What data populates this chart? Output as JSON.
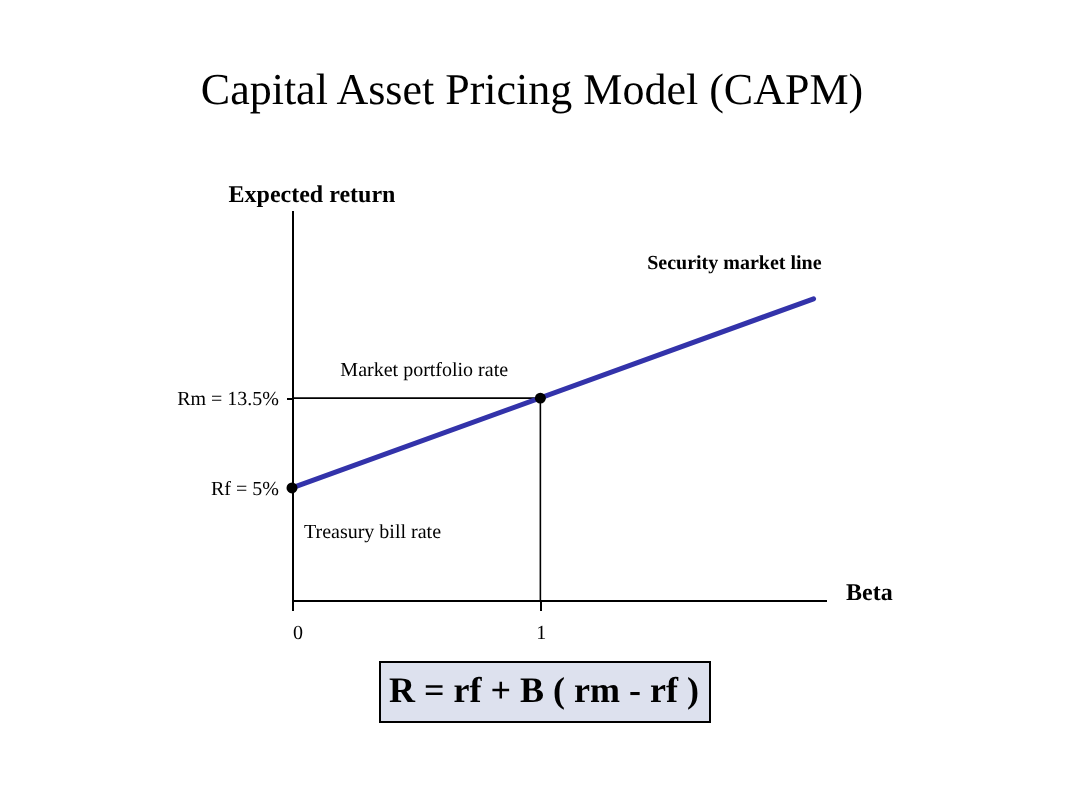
{
  "chart_data": {
    "type": "line",
    "title": "Capital Asset Pricing Model (CAPM)",
    "xlabel": "Beta",
    "ylabel": "Expected return",
    "x": [
      0,
      2.1
    ],
    "series": [
      {
        "name": "Security market line",
        "color": "#3333aa",
        "values": [
          5,
          22.9
        ]
      },
      {
        "type": "scatter",
        "color": "#000000",
        "x": [
          0,
          1
        ],
        "values": [
          5,
          13.5
        ],
        "marker": "circle"
      }
    ],
    "xlim": [
      0,
      2.15
    ],
    "xticks": [
      0,
      1
    ],
    "ylim": [
      -5.6,
      31.3
    ],
    "yticks": [
      {
        "value": 5,
        "label": "Rf = 5%"
      },
      {
        "value": 13.5,
        "label": "Rm = 13.5%"
      }
    ],
    "annotations": [
      {
        "text": "Market portfolio rate",
        "x": 1,
        "y": 13.5
      },
      {
        "text": "Treasury bill rate",
        "x": 0,
        "y": 5
      },
      "R = rf + B ( rm - rf )"
    ],
    "ref_lines": [
      {
        "axis": "y",
        "value": 13.5
      },
      {
        "axis": "x",
        "value": 1
      }
    ],
    "grid": false,
    "legend": false
  }
}
